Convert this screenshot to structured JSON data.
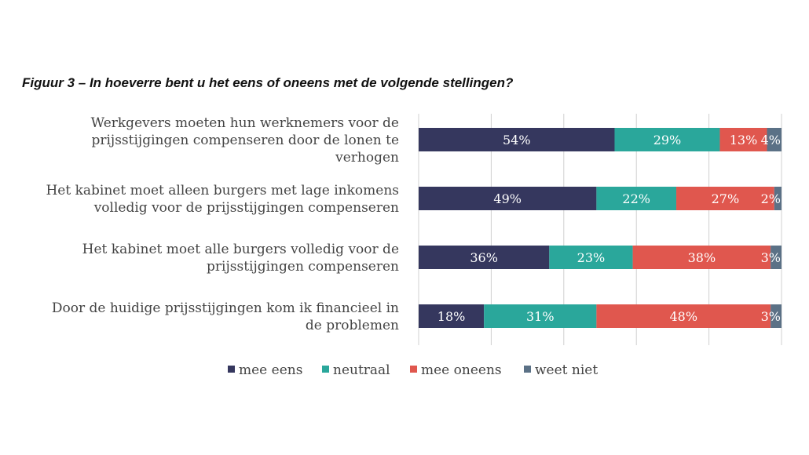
{
  "chart_data": {
    "type": "bar",
    "orientation": "horizontal",
    "stacked": true,
    "title": "Figuur 3 – In hoeverre bent u het eens of oneens met de volgende stellingen?",
    "xlabel": "",
    "ylabel": "",
    "xlim": [
      0,
      100
    ],
    "grid": true,
    "legend_position": "bottom",
    "categories": [
      [
        "Werkgevers moeten hun werknemers voor de",
        "prijsstijgingen compenseren door de lonen te",
        "verhogen"
      ],
      [
        "Het kabinet moet alleen burgers met lage inkomens",
        "volledig voor de prijsstijgingen compenseren"
      ],
      [
        "Het kabinet moet alle burgers volledig voor de",
        "prijsstijgingen compenseren"
      ],
      [
        "Door de huidige prijsstijgingen kom ik financieel in",
        "de problemen"
      ]
    ],
    "series": [
      {
        "name": "mee eens",
        "color": "#35375e",
        "values": [
          54,
          49,
          36,
          18
        ],
        "labels": [
          "54%",
          "49%",
          "36%",
          "18%"
        ]
      },
      {
        "name": "neutraal",
        "color": "#2aa79b",
        "values": [
          29,
          22,
          23,
          31
        ],
        "labels": [
          "29%",
          "22%",
          "23%",
          "31%"
        ]
      },
      {
        "name": "mee oneens",
        "color": "#e0574e",
        "values": [
          13,
          27,
          38,
          48
        ],
        "labels": [
          "13%",
          "27%",
          "38%",
          "48%"
        ]
      },
      {
        "name": "weet niet",
        "color": "#5b7186",
        "values": [
          4,
          2,
          3,
          3
        ],
        "labels": [
          "4%",
          "2%",
          "3%",
          "3%"
        ]
      }
    ]
  }
}
